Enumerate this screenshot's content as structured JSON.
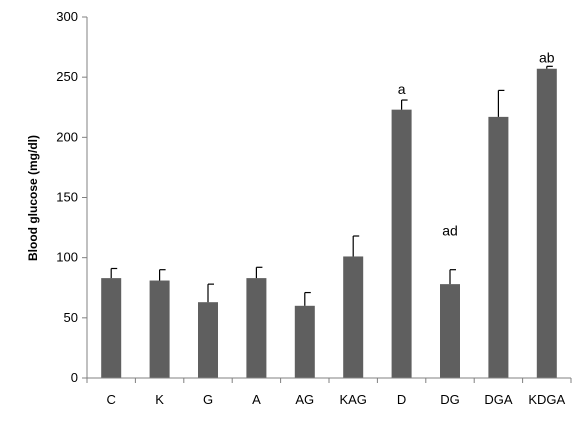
{
  "chart_data": {
    "type": "bar",
    "title": "",
    "xlabel": "",
    "ylabel": "Blood glucose (mg/dl)",
    "ylim": [
      0,
      300
    ],
    "yticks": [
      "0",
      "50",
      "100",
      "150",
      "200",
      "250",
      "300"
    ],
    "categories": [
      "C",
      "K",
      "G",
      "A",
      "AG",
      "KAG",
      "D",
      "DG",
      "DGA",
      "KDGA"
    ],
    "values": [
      83,
      81,
      63,
      83,
      60,
      101,
      223,
      78,
      217,
      257
    ],
    "errors": [
      8,
      9,
      15,
      9,
      11,
      17,
      8,
      12,
      22,
      2
    ],
    "annotations": [
      {
        "category": "D",
        "text": "a"
      },
      {
        "category": "DG",
        "text": "ad"
      },
      {
        "category": "KDGA",
        "text": "ab"
      }
    ],
    "grid": false,
    "legend": "none",
    "colors": {
      "bar": "#5f5f5f",
      "axis": "#808080",
      "error_bar": "#000000"
    }
  }
}
